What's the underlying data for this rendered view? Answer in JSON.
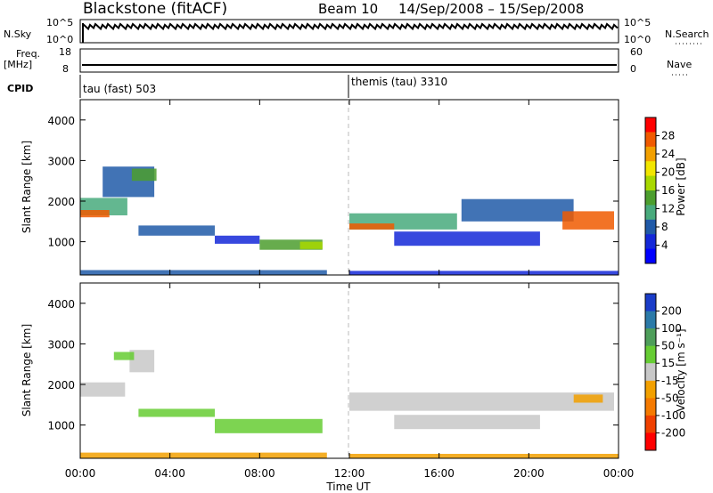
{
  "header": {
    "station": "Blackstone (fitACF)",
    "beam": "Beam 10",
    "date_range": "14/Sep/2008 – 15/Sep/2008"
  },
  "top_panels": {
    "nsky": {
      "label": "N.Sky",
      "ticks_left": [
        "10^5",
        "10^0"
      ],
      "ticks_right": [
        "10^5",
        "10^0"
      ],
      "right_label": "N.Search"
    },
    "freq": {
      "label_line1": "Freq.",
      "label_line2": "[MHz]",
      "ticks_left": [
        "18",
        "8"
      ],
      "ticks_right": [
        "60",
        "0"
      ],
      "right_label": "Nave"
    },
    "cpid": {
      "label": "CPID",
      "modes": [
        {
          "text": "tau (fast) 503",
          "start_hour": 0
        },
        {
          "text": "themis (tau) 3310",
          "start_hour": 12
        }
      ]
    }
  },
  "time_axis": {
    "label": "Time UT",
    "ticks": [
      "00:00",
      "04:00",
      "08:00",
      "12:00",
      "16:00",
      "20:00",
      "00:00"
    ],
    "tick_hours": [
      0,
      4,
      8,
      12,
      16,
      20,
      24
    ]
  },
  "range_axis": {
    "label": "Slant Range [km]",
    "ticks": [
      1000,
      2000,
      3000,
      4000
    ],
    "range": [
      180,
      4500
    ]
  },
  "colorbars": {
    "power": {
      "label": "Power [dB]",
      "ticks": [
        "28",
        "24",
        "20",
        "16",
        "12",
        "8",
        "4"
      ],
      "colors": [
        "#ff0000",
        "#f05a00",
        "#f2a000",
        "#f2e600",
        "#a8d800",
        "#4c9e2e",
        "#48aa7c",
        "#205aa8",
        "#1428d8",
        "#0000ff"
      ]
    },
    "velocity": {
      "label": "Velocity [m s⁻¹]",
      "ticks": [
        "200",
        "100",
        "50",
        "15",
        "-15",
        "-50",
        "-100",
        "-200"
      ],
      "colors": [
        "#1a3cc8",
        "#2b7aa8",
        "#4e9e5a",
        "#66cc33",
        "#c8c8c8",
        "#f2a000",
        "#f57a00",
        "#f04000",
        "#ff0000"
      ]
    }
  },
  "chart_data": [
    {
      "type": "heatmap",
      "title": "Power",
      "xlabel": "Time UT",
      "ylabel": "Slant Range [km]",
      "xlim": [
        0,
        24
      ],
      "ylim": [
        180,
        4500
      ],
      "colorbar": "Power [dB]",
      "features": [
        {
          "t0": 0.0,
          "t1": 2.1,
          "r0": 1650,
          "r1": 2080,
          "color": "#48aa7c"
        },
        {
          "t0": 0.0,
          "t1": 1.3,
          "r0": 1600,
          "r1": 1780,
          "color": "#f05a00"
        },
        {
          "t0": 1.0,
          "t1": 3.3,
          "r0": 2100,
          "r1": 2850,
          "color": "#205aa8"
        },
        {
          "t0": 2.3,
          "t1": 3.4,
          "r0": 2500,
          "r1": 2800,
          "color": "#4c9e2e"
        },
        {
          "t0": 2.6,
          "t1": 6.0,
          "r0": 1150,
          "r1": 1400,
          "color": "#205aa8"
        },
        {
          "t0": 6.0,
          "t1": 8.0,
          "r0": 950,
          "r1": 1150,
          "color": "#1428d8"
        },
        {
          "t0": 8.0,
          "t1": 10.8,
          "r0": 800,
          "r1": 1050,
          "color": "#4c9e2e"
        },
        {
          "t0": 9.8,
          "t1": 10.8,
          "r0": 820,
          "r1": 1000,
          "color": "#a8d800"
        },
        {
          "t0": 0.0,
          "t1": 11.0,
          "r0": 190,
          "r1": 300,
          "color": "#205aa8"
        },
        {
          "t0": 12.0,
          "t1": 16.8,
          "r0": 1300,
          "r1": 1700,
          "color": "#48aa7c"
        },
        {
          "t0": 12.0,
          "t1": 14.0,
          "r0": 1300,
          "r1": 1450,
          "color": "#f05a00"
        },
        {
          "t0": 14.0,
          "t1": 20.5,
          "r0": 900,
          "r1": 1250,
          "color": "#1428d8"
        },
        {
          "t0": 17.0,
          "t1": 22.0,
          "r0": 1500,
          "r1": 2050,
          "color": "#205aa8"
        },
        {
          "t0": 21.5,
          "t1": 23.8,
          "r0": 1300,
          "r1": 1750,
          "color": "#f05a00"
        },
        {
          "t0": 12.0,
          "t1": 24.0,
          "r0": 190,
          "r1": 280,
          "color": "#1428d8"
        }
      ]
    },
    {
      "type": "heatmap",
      "title": "Velocity",
      "xlabel": "Time UT",
      "ylabel": "Slant Range [km]",
      "xlim": [
        0,
        24
      ],
      "ylim": [
        180,
        4500
      ],
      "colorbar": "Velocity [m s⁻¹]",
      "features": [
        {
          "t0": 0.0,
          "t1": 2.0,
          "r0": 1700,
          "r1": 2050,
          "color": "#c8c8c8"
        },
        {
          "t0": 2.2,
          "t1": 3.3,
          "r0": 2300,
          "r1": 2850,
          "color": "#c8c8c8"
        },
        {
          "t0": 1.5,
          "t1": 2.4,
          "r0": 2600,
          "r1": 2800,
          "color": "#66cc33"
        },
        {
          "t0": 2.6,
          "t1": 6.0,
          "r0": 1200,
          "r1": 1400,
          "color": "#66cc33"
        },
        {
          "t0": 6.0,
          "t1": 10.8,
          "r0": 800,
          "r1": 1150,
          "color": "#66cc33"
        },
        {
          "t0": 0.0,
          "t1": 11.0,
          "r0": 190,
          "r1": 320,
          "color": "#f2a000"
        },
        {
          "t0": 12.0,
          "t1": 23.8,
          "r0": 1350,
          "r1": 1800,
          "color": "#c8c8c8"
        },
        {
          "t0": 14.0,
          "t1": 20.5,
          "r0": 900,
          "r1": 1250,
          "color": "#c8c8c8"
        },
        {
          "t0": 22.0,
          "t1": 23.3,
          "r0": 1550,
          "r1": 1750,
          "color": "#f2a000"
        },
        {
          "t0": 12.0,
          "t1": 24.0,
          "r0": 190,
          "r1": 290,
          "color": "#f2a000"
        }
      ]
    }
  ]
}
